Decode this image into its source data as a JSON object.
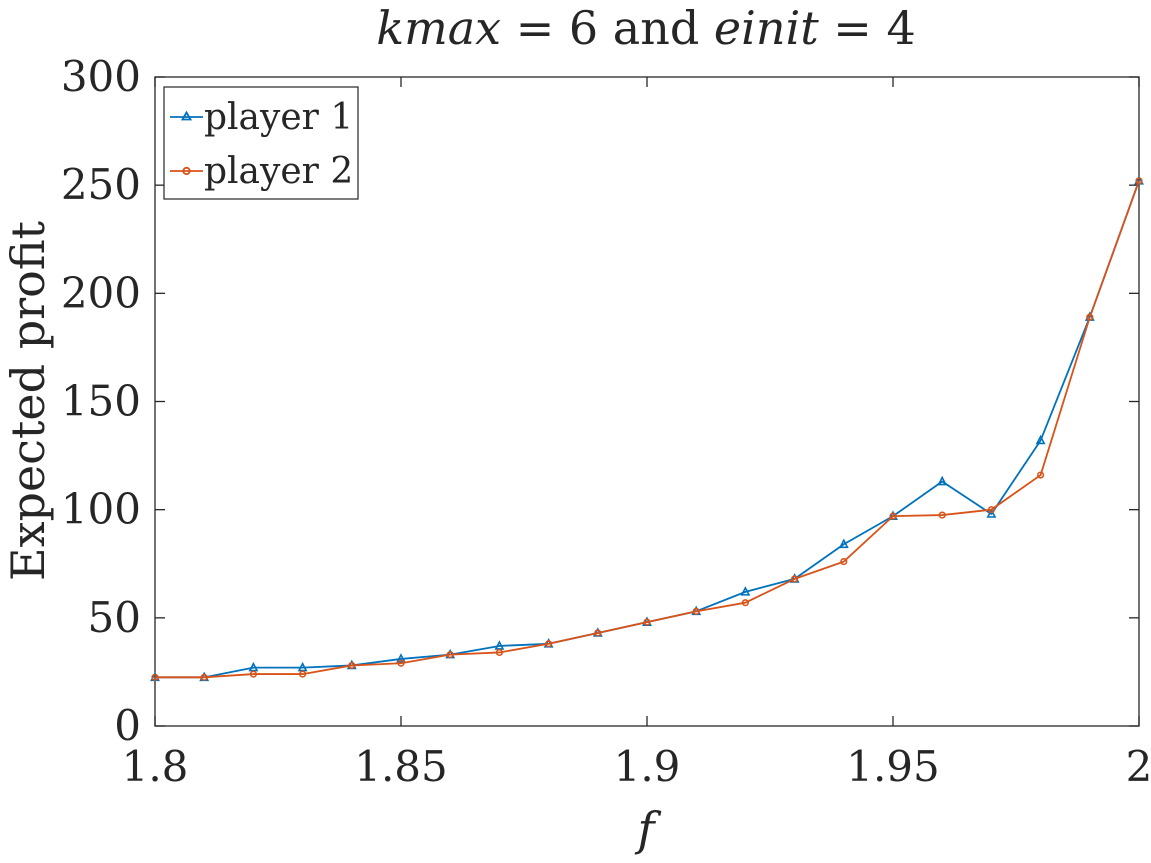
{
  "chart_data": {
    "type": "line",
    "title": {
      "left_var": "kmax",
      "left_rest": " = 6 and ",
      "right_var": "einit",
      "right_rest": " = 4"
    },
    "xlabel": "f",
    "ylabel": "Expected profit",
    "xlim": [
      1.8,
      2.0
    ],
    "ylim": [
      0,
      300
    ],
    "xticks": [
      1.8,
      1.85,
      1.9,
      1.95,
      2.0
    ],
    "xtick_labels": [
      "1.8",
      "1.85",
      "1.9",
      "1.95",
      "2"
    ],
    "yticks": [
      0,
      50,
      100,
      150,
      200,
      250,
      300
    ],
    "ytick_labels": [
      "0",
      "50",
      "100",
      "150",
      "200",
      "250",
      "300"
    ],
    "legend_position": "top-left",
    "grid": false,
    "x": [
      1.8,
      1.81,
      1.82,
      1.83,
      1.84,
      1.85,
      1.86,
      1.87,
      1.88,
      1.89,
      1.9,
      1.91,
      1.92,
      1.93,
      1.94,
      1.95,
      1.96,
      1.97,
      1.98,
      1.99,
      2.0
    ],
    "series": [
      {
        "name": "player 1",
        "color": "#0072BD",
        "marker": "triangle",
        "values": [
          22.5,
          22.5,
          27,
          27,
          28,
          31,
          33,
          37,
          38,
          43,
          48,
          53,
          62,
          68,
          84,
          97,
          113,
          98,
          132,
          189,
          252
        ]
      },
      {
        "name": "player 2",
        "color": "#D95319",
        "marker": "circle",
        "values": [
          22.5,
          22.5,
          24,
          24,
          28,
          29,
          33,
          34,
          38,
          43,
          48,
          53,
          57,
          68,
          76,
          97,
          97.5,
          100,
          116,
          189,
          252
        ]
      }
    ]
  }
}
